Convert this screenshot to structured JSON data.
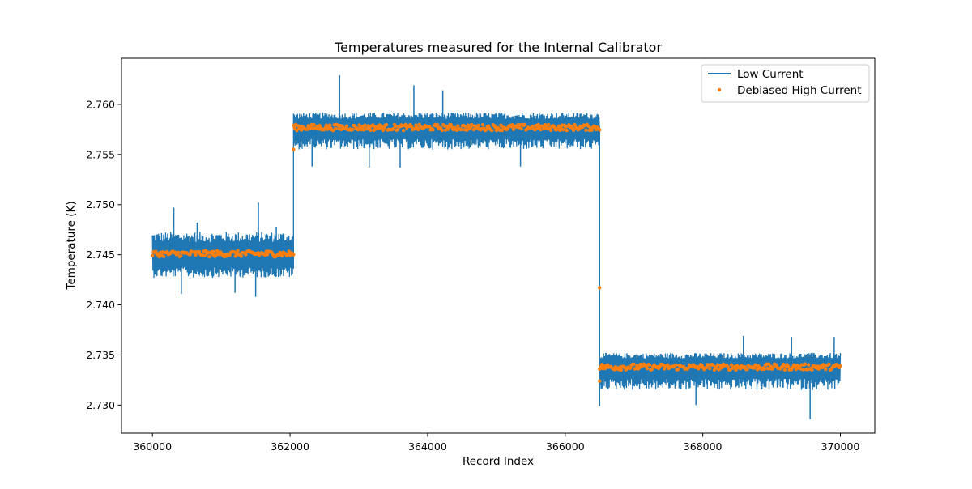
{
  "chart_data": {
    "type": "line",
    "title": "Temperatures measured for the Internal Calibrator",
    "xlabel": "Record Index",
    "ylabel": "Temperature (K)",
    "xlim": [
      359550,
      370500
    ],
    "ylim": [
      2.7272,
      2.7646
    ],
    "xticks": [
      360000,
      362000,
      364000,
      366000,
      368000,
      370000
    ],
    "xtick_labels": [
      "360000",
      "362000",
      "364000",
      "366000",
      "368000",
      "370000"
    ],
    "yticks": [
      2.73,
      2.735,
      2.74,
      2.745,
      2.75,
      2.755,
      2.76
    ],
    "ytick_labels": [
      "2.730",
      "2.735",
      "2.740",
      "2.745",
      "2.750",
      "2.755",
      "2.760"
    ],
    "grid": false,
    "legend_position": "top-right",
    "series": [
      {
        "name": "Low Current",
        "kind": "line",
        "color": "#1f77b4",
        "segments": [
          {
            "x_start": 360000,
            "x_end": 362050,
            "mean": 2.745,
            "band_low": 2.7427,
            "band_high": 2.7473
          },
          {
            "x_start": 362050,
            "x_end": 366500,
            "mean": 2.7578,
            "band_low": 2.7555,
            "band_high": 2.7592
          },
          {
            "x_start": 366500,
            "x_end": 370000,
            "mean": 2.734,
            "band_low": 2.7315,
            "band_high": 2.7352
          }
        ],
        "spikes": [
          {
            "x": 360310,
            "y": 2.7497
          },
          {
            "x": 360420,
            "y": 2.7411
          },
          {
            "x": 360650,
            "y": 2.7482
          },
          {
            "x": 361200,
            "y": 2.7412
          },
          {
            "x": 361540,
            "y": 2.7502
          },
          {
            "x": 361500,
            "y": 2.7408
          },
          {
            "x": 361800,
            "y": 2.7478
          },
          {
            "x": 362720,
            "y": 2.7629
          },
          {
            "x": 363800,
            "y": 2.7619
          },
          {
            "x": 364220,
            "y": 2.7614
          },
          {
            "x": 362320,
            "y": 2.7538
          },
          {
            "x": 363150,
            "y": 2.7537
          },
          {
            "x": 363600,
            "y": 2.7537
          },
          {
            "x": 365350,
            "y": 2.7538
          },
          {
            "x": 366200,
            "y": 2.7563
          },
          {
            "x": 366500,
            "y": 2.7299
          },
          {
            "x": 367900,
            "y": 2.73
          },
          {
            "x": 368590,
            "y": 2.7369
          },
          {
            "x": 369290,
            "y": 2.7368
          },
          {
            "x": 369560,
            "y": 2.7286
          },
          {
            "x": 369910,
            "y": 2.7368
          }
        ]
      },
      {
        "name": "Debiased High Current",
        "kind": "scatter",
        "color": "#ff7f0e",
        "segments": [
          {
            "x_start": 360000,
            "x_end": 362050,
            "mean": 2.7451
          },
          {
            "x_start": 362050,
            "x_end": 366500,
            "mean": 2.7577
          },
          {
            "x_start": 366500,
            "x_end": 370000,
            "mean": 2.7338
          }
        ],
        "outliers": [
          {
            "x": 362050,
            "y": 2.7555
          },
          {
            "x": 366500,
            "y": 2.7417
          },
          {
            "x": 366500,
            "y": 2.7324
          }
        ]
      }
    ]
  }
}
